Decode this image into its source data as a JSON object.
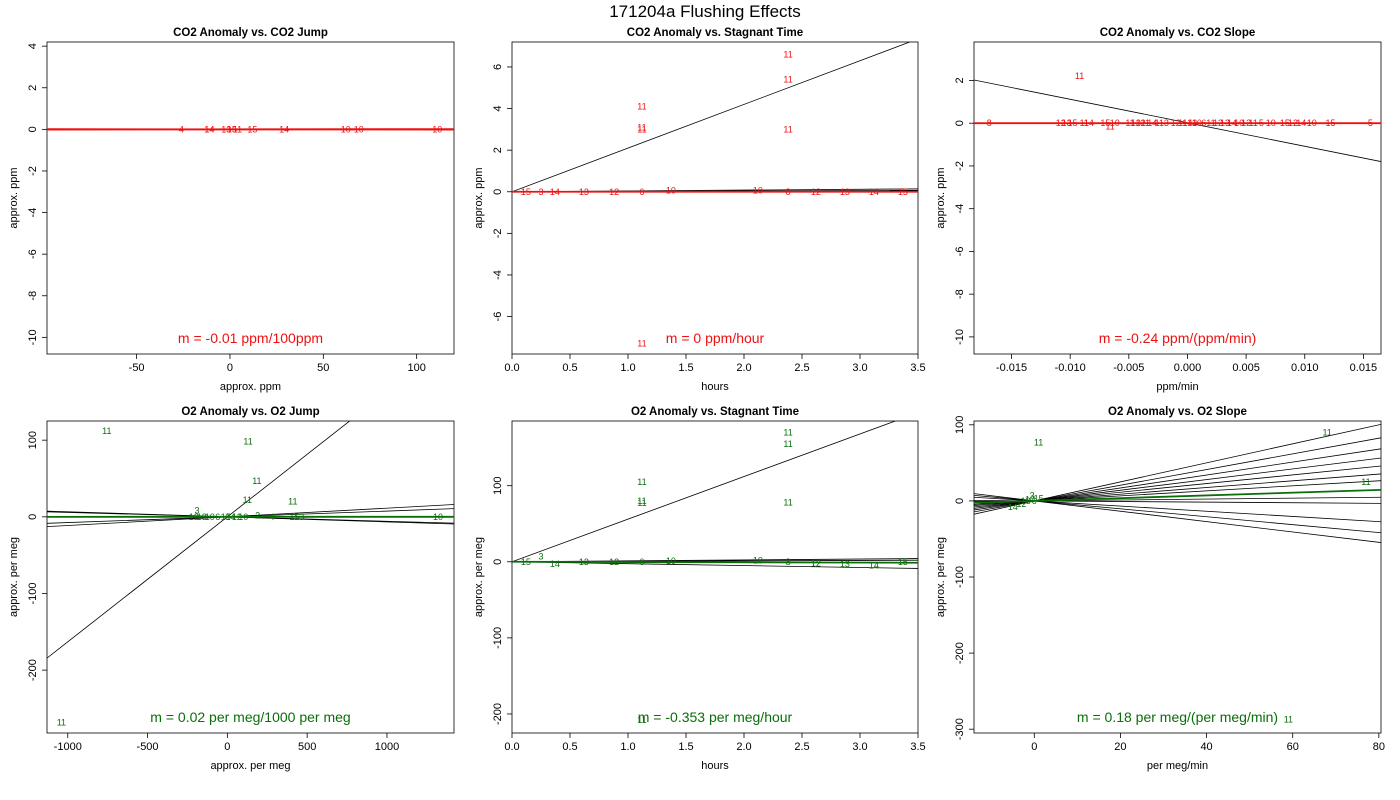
{
  "figure_title": "171204a   Flushing Effects",
  "colors": {
    "co2": "#ee1111",
    "o2": "#0a6e0a",
    "fit": "#000000"
  },
  "chart_data": [
    {
      "type": "scatter",
      "title": "CO2 Anomaly vs. CO2 Jump",
      "xlabel": "approx. ppm",
      "ylabel": "approx. ppm",
      "xlim": [
        -98,
        120
      ],
      "ylim": [
        -10.8,
        4.2
      ],
      "xticks": [
        -50,
        0,
        50,
        100
      ],
      "yticks": [
        -10,
        -8,
        -6,
        -4,
        -2,
        0,
        2,
        4
      ],
      "color": "co2",
      "slope_text": "m = -0.01 ppm/100ppm",
      "points": [
        {
          "x": -26,
          "y": 0,
          "label": "4"
        },
        {
          "x": -11,
          "y": 0,
          "label": "14"
        },
        {
          "x": -11,
          "y": 0,
          "label": "14"
        },
        {
          "x": -2,
          "y": 0,
          "label": "13"
        },
        {
          "x": 1,
          "y": 0,
          "label": "15"
        },
        {
          "x": 4,
          "y": 0,
          "label": "11"
        },
        {
          "x": 12,
          "y": 0,
          "label": "15"
        },
        {
          "x": 29,
          "y": 0,
          "label": "14"
        },
        {
          "x": 62,
          "y": 0,
          "label": "10"
        },
        {
          "x": 69,
          "y": 0,
          "label": "10"
        },
        {
          "x": 111,
          "y": 0,
          "label": "10"
        }
      ],
      "lines": [
        {
          "slope": -0.0001,
          "intercept": 0,
          "color": "co2"
        },
        {
          "slope": 0.0001,
          "intercept": 0,
          "color": "co2"
        }
      ]
    },
    {
      "type": "scatter",
      "title": "CO2 Anomaly vs. Stagnant Time",
      "xlabel": "hours",
      "ylabel": "approx. ppm",
      "xlim": [
        0,
        3.5
      ],
      "ylim": [
        -7.8,
        7.2
      ],
      "xticks": [
        0.0,
        0.5,
        1.0,
        1.5,
        2.0,
        2.5,
        3.0,
        3.5
      ],
      "yticks": [
        -6,
        -4,
        -2,
        0,
        2,
        4,
        6
      ],
      "color": "co2",
      "slope_text": "m = 0 ppm/hour",
      "points": [
        {
          "x": 1.12,
          "y": 4.1,
          "label": "11"
        },
        {
          "x": 1.12,
          "y": 3.1,
          "label": "11"
        },
        {
          "x": 1.12,
          "y": 3.0,
          "label": "11"
        },
        {
          "x": 2.38,
          "y": 6.6,
          "label": "11"
        },
        {
          "x": 2.38,
          "y": 5.4,
          "label": "11"
        },
        {
          "x": 2.38,
          "y": 3.0,
          "label": "11"
        },
        {
          "x": 1.12,
          "y": -7.3,
          "label": "11"
        },
        {
          "x": 0.12,
          "y": 0,
          "label": "15"
        },
        {
          "x": 0.25,
          "y": 0,
          "label": "3"
        },
        {
          "x": 0.37,
          "y": 0,
          "label": "14"
        },
        {
          "x": 0.62,
          "y": 0,
          "label": "13"
        },
        {
          "x": 0.88,
          "y": 0,
          "label": "12"
        },
        {
          "x": 1.12,
          "y": 0,
          "label": "6"
        },
        {
          "x": 1.37,
          "y": 0.05,
          "label": "10"
        },
        {
          "x": 2.12,
          "y": 0.05,
          "label": "10"
        },
        {
          "x": 2.38,
          "y": 0,
          "label": "8"
        },
        {
          "x": 2.62,
          "y": 0,
          "label": "12"
        },
        {
          "x": 2.87,
          "y": 0,
          "label": "13"
        },
        {
          "x": 3.12,
          "y": 0,
          "label": "14"
        },
        {
          "x": 3.37,
          "y": 0,
          "label": "15"
        }
      ],
      "lines": [
        {
          "slope": 2.1,
          "intercept": 0,
          "color": "fit"
        },
        {
          "slope": 0.04,
          "intercept": 0,
          "color": "fit"
        },
        {
          "slope": 0.02,
          "intercept": 0,
          "color": "fit"
        },
        {
          "slope": 0.0,
          "intercept": 0,
          "color": "co2"
        }
      ]
    },
    {
      "type": "scatter",
      "title": "CO2 Anomaly vs. CO2 Slope",
      "xlabel": "ppm/min",
      "ylabel": "approx. ppm",
      "xlim": [
        -0.0182,
        0.0165
      ],
      "ylim": [
        -10.8,
        3.8
      ],
      "xticks": [
        -0.015,
        -0.01,
        -0.005,
        0.0,
        0.005,
        0.01,
        0.015
      ],
      "yticks": [
        -10,
        -8,
        -6,
        -4,
        -2,
        0,
        2
      ],
      "color": "co2",
      "slope_text": "m = -0.24 ppm/(ppm/min)",
      "points": [
        {
          "x": -0.0169,
          "y": 0,
          "label": "8"
        },
        {
          "x": -0.0108,
          "y": 0,
          "label": "12"
        },
        {
          "x": -0.0103,
          "y": 0,
          "label": "13"
        },
        {
          "x": -0.0098,
          "y": 0,
          "label": "15"
        },
        {
          "x": -0.0092,
          "y": 2.2,
          "label": "11"
        },
        {
          "x": -0.0088,
          "y": 0,
          "label": "11"
        },
        {
          "x": -0.0084,
          "y": 0,
          "label": "14"
        },
        {
          "x": -0.007,
          "y": 0,
          "label": "15"
        },
        {
          "x": -0.0066,
          "y": -0.15,
          "label": "11"
        },
        {
          "x": -0.0062,
          "y": 0,
          "label": "10"
        },
        {
          "x": -0.0049,
          "y": 0,
          "label": "11"
        },
        {
          "x": -0.0044,
          "y": 0,
          "label": "13"
        },
        {
          "x": -0.004,
          "y": 0,
          "label": "12"
        },
        {
          "x": -0.0036,
          "y": 0,
          "label": "11"
        },
        {
          "x": -0.003,
          "y": 0,
          "label": "14"
        },
        {
          "x": -0.0024,
          "y": 0,
          "label": "11"
        },
        {
          "x": -0.0018,
          "y": 0,
          "label": "3"
        },
        {
          "x": -0.001,
          "y": 0,
          "label": "12"
        },
        {
          "x": -0.0004,
          "y": 0,
          "label": "11"
        },
        {
          "x": 0.0,
          "y": 0,
          "label": "14"
        },
        {
          "x": 0.0004,
          "y": 0,
          "label": "13"
        },
        {
          "x": 0.0008,
          "y": 0,
          "label": "10"
        },
        {
          "x": 0.0014,
          "y": 0,
          "label": "6"
        },
        {
          "x": 0.002,
          "y": 0,
          "label": "11"
        },
        {
          "x": 0.0026,
          "y": 0,
          "label": "12"
        },
        {
          "x": 0.0032,
          "y": 0,
          "label": "13"
        },
        {
          "x": 0.0038,
          "y": 0,
          "label": "14"
        },
        {
          "x": 0.0044,
          "y": 0,
          "label": "10"
        },
        {
          "x": 0.005,
          "y": 0,
          "label": "12"
        },
        {
          "x": 0.0056,
          "y": 0,
          "label": "11"
        },
        {
          "x": 0.0063,
          "y": 0,
          "label": "5"
        },
        {
          "x": 0.0071,
          "y": 0,
          "label": "10"
        },
        {
          "x": 0.0083,
          "y": 0,
          "label": "15"
        },
        {
          "x": 0.009,
          "y": 0,
          "label": "12"
        },
        {
          "x": 0.0097,
          "y": 0,
          "label": "14"
        },
        {
          "x": 0.0106,
          "y": 0,
          "label": "10"
        },
        {
          "x": 0.0122,
          "y": 0,
          "label": "15"
        },
        {
          "x": 0.0156,
          "y": 0,
          "label": "5"
        }
      ],
      "lines": [
        {
          "slope": -110,
          "intercept": 0.02,
          "color": "fit"
        },
        {
          "slope": 0,
          "intercept": 0,
          "color": "co2"
        }
      ]
    },
    {
      "type": "scatter",
      "title": "O2 Anomaly vs. O2 Jump",
      "xlabel": "approx. per meg",
      "ylabel": "approx. per meg",
      "xlim": [
        -1130,
        1420
      ],
      "ylim": [
        -282,
        125
      ],
      "xticks": [
        -1000,
        -500,
        0,
        500,
        1000
      ],
      "yticks": [
        -200,
        -100,
        0,
        100
      ],
      "color": "o2",
      "slope_text": "m = 0.02 per meg/1000 per meg",
      "points": [
        {
          "x": -755,
          "y": 112,
          "label": "11"
        },
        {
          "x": 130,
          "y": 98,
          "label": "11"
        },
        {
          "x": 185,
          "y": 47,
          "label": "11"
        },
        {
          "x": 125,
          "y": 22,
          "label": "11"
        },
        {
          "x": 410,
          "y": 20,
          "label": "11"
        },
        {
          "x": -1040,
          "y": -268,
          "label": "11"
        },
        {
          "x": -190,
          "y": 8,
          "label": "3"
        },
        {
          "x": -210,
          "y": 0,
          "label": "12"
        },
        {
          "x": -160,
          "y": 0,
          "label": "13"
        },
        {
          "x": -110,
          "y": 0,
          "label": "10"
        },
        {
          "x": -60,
          "y": 0,
          "label": "6"
        },
        {
          "x": -10,
          "y": 0,
          "label": "15"
        },
        {
          "x": 20,
          "y": 0,
          "label": "14"
        },
        {
          "x": 60,
          "y": 0,
          "label": "12"
        },
        {
          "x": 100,
          "y": 0,
          "label": "10"
        },
        {
          "x": 190,
          "y": 2,
          "label": "2"
        },
        {
          "x": 280,
          "y": 0,
          "label": "4"
        },
        {
          "x": 420,
          "y": 0,
          "label": "15"
        },
        {
          "x": 450,
          "y": 0,
          "label": "13"
        },
        {
          "x": 1320,
          "y": 0,
          "label": "10"
        }
      ],
      "lines": [
        {
          "slope": 0.1631,
          "intercept": 0,
          "color": "fit"
        },
        {
          "slope": 0.0113,
          "intercept": 0,
          "color": "fit"
        },
        {
          "slope": -0.0066,
          "intercept": 0,
          "color": "fit"
        },
        {
          "slope": 0.0075,
          "intercept": 0,
          "color": "fit"
        },
        {
          "slope": -0.0058,
          "intercept": 0,
          "color": "fit"
        },
        {
          "slope": 2e-05,
          "intercept": 0,
          "color": "o2"
        }
      ]
    },
    {
      "type": "scatter",
      "title": "O2 Anomaly vs. Stagnant Time",
      "xlabel": "hours",
      "ylabel": "approx. per meg",
      "xlim": [
        0,
        3.5
      ],
      "ylim": [
        -225,
        185
      ],
      "xticks": [
        0.0,
        0.5,
        1.0,
        1.5,
        2.0,
        2.5,
        3.0,
        3.5
      ],
      "yticks": [
        -200,
        -100,
        0,
        100
      ],
      "color": "o2",
      "slope_text": "m = -0.353 per meg/hour",
      "points": [
        {
          "x": 1.12,
          "y": 105,
          "label": "11"
        },
        {
          "x": 1.12,
          "y": 80,
          "label": "11"
        },
        {
          "x": 1.12,
          "y": 77,
          "label": "11"
        },
        {
          "x": 2.38,
          "y": 170,
          "label": "11"
        },
        {
          "x": 2.38,
          "y": 155,
          "label": "11"
        },
        {
          "x": 2.38,
          "y": 78,
          "label": "11"
        },
        {
          "x": 1.12,
          "y": -208,
          "label": "11"
        },
        {
          "x": 0.25,
          "y": 7,
          "label": "3"
        },
        {
          "x": 0.12,
          "y": 0,
          "label": "15"
        },
        {
          "x": 0.37,
          "y": -3,
          "label": "14"
        },
        {
          "x": 0.62,
          "y": 0,
          "label": "13"
        },
        {
          "x": 0.88,
          "y": 0,
          "label": "12"
        },
        {
          "x": 1.12,
          "y": 0,
          "label": "6"
        },
        {
          "x": 1.37,
          "y": 1,
          "label": "10"
        },
        {
          "x": 2.12,
          "y": 2,
          "label": "10"
        },
        {
          "x": 2.38,
          "y": 0,
          "label": "8"
        },
        {
          "x": 2.62,
          "y": -2,
          "label": "12"
        },
        {
          "x": 2.87,
          "y": -3,
          "label": "13"
        },
        {
          "x": 3.12,
          "y": -5,
          "label": "14"
        },
        {
          "x": 3.37,
          "y": 0,
          "label": "15"
        }
      ],
      "lines": [
        {
          "slope": 56,
          "intercept": 0,
          "color": "fit"
        },
        {
          "slope": 1.2,
          "intercept": 0,
          "color": "fit"
        },
        {
          "slope": -2.5,
          "intercept": 0,
          "color": "fit"
        },
        {
          "slope": 0.6,
          "intercept": 0,
          "color": "fit"
        },
        {
          "slope": -0.353,
          "intercept": 0,
          "color": "o2"
        }
      ]
    },
    {
      "type": "scatter",
      "title": "O2 Anomaly vs. O2 Slope",
      "xlabel": "per meg/min",
      "ylabel": "approx. per meg",
      "xlim": [
        -14,
        80.5
      ],
      "ylim": [
        -305,
        105
      ],
      "xticks": [
        0,
        20,
        40,
        60,
        80
      ],
      "yticks": [
        -300,
        -200,
        -100,
        0,
        100
      ],
      "color": "o2",
      "slope_text": "m = 0.18 per meg/(per meg/min)",
      "points": [
        {
          "x": 1,
          "y": 77,
          "label": "11"
        },
        {
          "x": 68,
          "y": 90,
          "label": "11"
        },
        {
          "x": 77,
          "y": 25,
          "label": "11"
        },
        {
          "x": 59,
          "y": -287,
          "label": "11"
        },
        {
          "x": -0.5,
          "y": 7,
          "label": "3"
        },
        {
          "x": -5,
          "y": -8,
          "label": "14"
        },
        {
          "x": -3,
          "y": -4,
          "label": "12"
        },
        {
          "x": -2,
          "y": 0,
          "label": "13"
        },
        {
          "x": -1,
          "y": 2,
          "label": "10"
        },
        {
          "x": 0,
          "y": 0,
          "label": "6"
        },
        {
          "x": 1,
          "y": 3,
          "label": "15"
        }
      ],
      "lines": [
        {
          "slope": 1.25,
          "intercept": 0,
          "color": "fit"
        },
        {
          "slope": 1.03,
          "intercept": 0,
          "color": "fit"
        },
        {
          "slope": 0.85,
          "intercept": 0,
          "color": "fit"
        },
        {
          "slope": 0.7,
          "intercept": 0,
          "color": "fit"
        },
        {
          "slope": 0.57,
          "intercept": 0,
          "color": "fit"
        },
        {
          "slope": 0.44,
          "intercept": 0,
          "color": "fit"
        },
        {
          "slope": 0.33,
          "intercept": 0,
          "color": "fit"
        },
        {
          "slope": 0.06,
          "intercept": 0,
          "color": "fit"
        },
        {
          "slope": -0.04,
          "intercept": 0,
          "color": "fit"
        },
        {
          "slope": -0.34,
          "intercept": 0,
          "color": "fit"
        },
        {
          "slope": -0.52,
          "intercept": 0,
          "color": "fit"
        },
        {
          "slope": -0.68,
          "intercept": 0,
          "color": "fit"
        },
        {
          "slope": 0.18,
          "intercept": 0,
          "color": "o2"
        }
      ]
    }
  ]
}
